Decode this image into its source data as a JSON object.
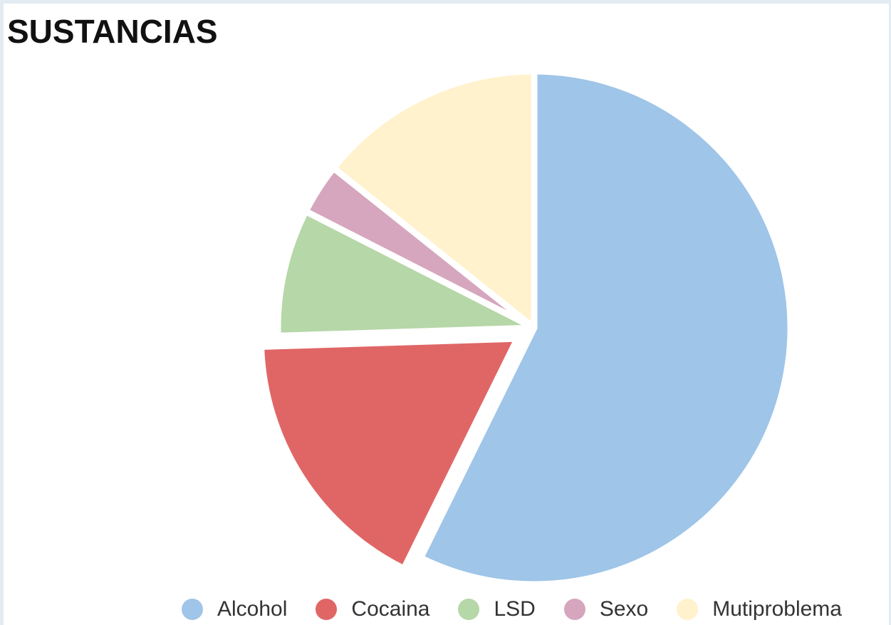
{
  "chart_data": {
    "type": "pie",
    "title": "SUSTANCIAS",
    "legend_position": "bottom",
    "start_angle_deg": 0,
    "direction": "clockwise",
    "slices": [
      {
        "label": "Alcohol",
        "value": 57.3,
        "color": "#9fc5e8",
        "exploded": false
      },
      {
        "label": "Cocaina",
        "value": 17.2,
        "color": "#e06666",
        "exploded": true
      },
      {
        "label": "LSD",
        "value": 8.0,
        "color": "#b6d7a8",
        "exploded": false
      },
      {
        "label": "Sexo",
        "value": 3.2,
        "color": "#d5a6bd",
        "exploded": false
      },
      {
        "label": "Mutiproblema",
        "value": 14.3,
        "color": "#fff2cc",
        "exploded": false
      }
    ]
  }
}
